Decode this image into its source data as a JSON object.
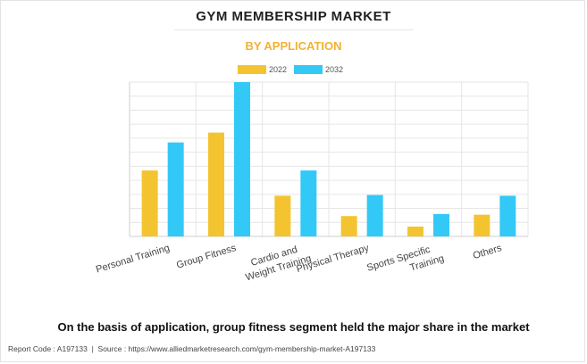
{
  "title": "GYM MEMBERSHIP MARKET",
  "subtitle": "BY APPLICATION",
  "caption": "On the basis of application, group fitness segment held the major share in the market",
  "footer": {
    "report_code": "Report Code : A197133",
    "separator": "|",
    "source": "Source : https://www.alliedmarketresearch.com/gym-membership-market-A197133"
  },
  "colors": {
    "series_2022": "#f4c430",
    "series_2032": "#33c9f7",
    "subtitle": "#f2b134",
    "grid": "#e6e6e6"
  },
  "chart_data": {
    "type": "bar",
    "categories": [
      [
        "Personal Training"
      ],
      [
        "Group Fitness"
      ],
      [
        "Cardio and",
        "Weight Training"
      ],
      [
        "Physical Therapy"
      ],
      [
        "Sports Specific",
        "Training"
      ],
      [
        "Others"
      ]
    ],
    "series": [
      {
        "name": "2022",
        "values": [
          4.7,
          7.4,
          2.9,
          1.45,
          0.7,
          1.55
        ]
      },
      {
        "name": "2032",
        "values": [
          6.7,
          11.0,
          4.7,
          2.95,
          1.6,
          2.9
        ]
      }
    ],
    "ylim": [
      0,
      11.0
    ],
    "grid": true,
    "legend_position": "top-center"
  }
}
